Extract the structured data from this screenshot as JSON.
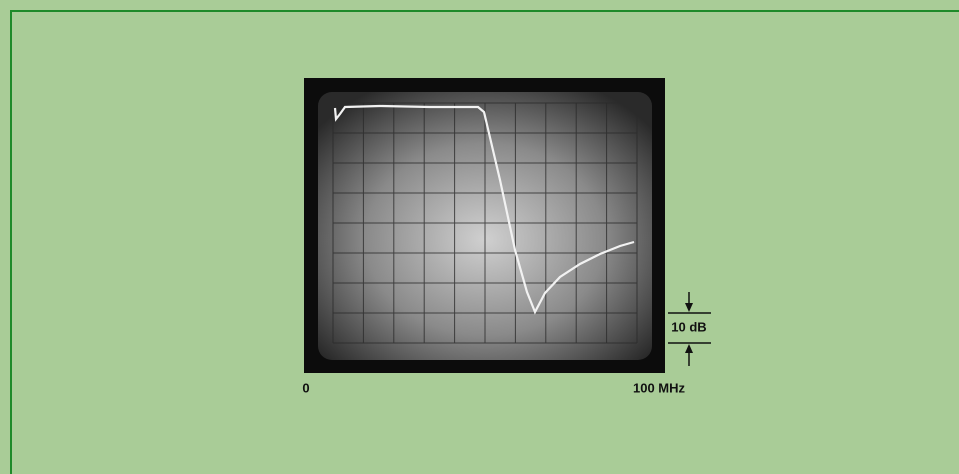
{
  "axis": {
    "start_label": "0",
    "end_label": "100 MHz"
  },
  "scale_marker": {
    "label": "10 dB"
  }
}
